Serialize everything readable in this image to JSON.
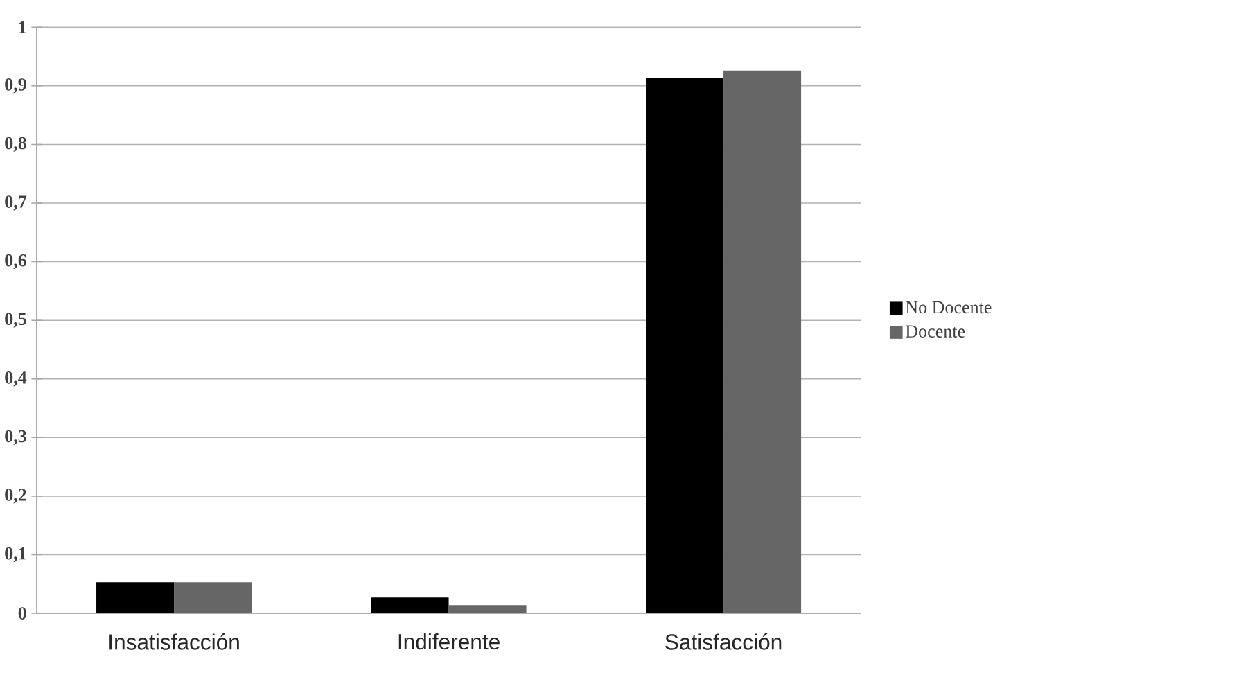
{
  "chart_data": {
    "type": "bar",
    "categories": [
      "Insatisfacción",
      "Indiferente",
      "Satisfacción"
    ],
    "series": [
      {
        "name": "No Docente",
        "color": "#000000",
        "values": [
          0.053,
          0.027,
          0.914
        ]
      },
      {
        "name": "Docente",
        "color": "#666666",
        "values": [
          0.053,
          0.014,
          0.926
        ]
      }
    ],
    "ylim": [
      0,
      1
    ],
    "yticks": [
      0,
      {
        "value": 0.1,
        "label": "0,1"
      },
      {
        "value": 0.2,
        "label": "0,2"
      },
      {
        "value": 0.3,
        "label": "0,3"
      },
      {
        "value": 0.4,
        "label": "0,4"
      },
      {
        "value": 0.5,
        "label": "0,5"
      },
      {
        "value": 0.6,
        "label": "0,6"
      },
      {
        "value": 0.7,
        "label": "0,7"
      },
      {
        "value": 0.8,
        "label": "0,8"
      },
      {
        "value": 0.9,
        "label": "0,9"
      },
      1
    ],
    "grid": "y",
    "legend": "right"
  }
}
